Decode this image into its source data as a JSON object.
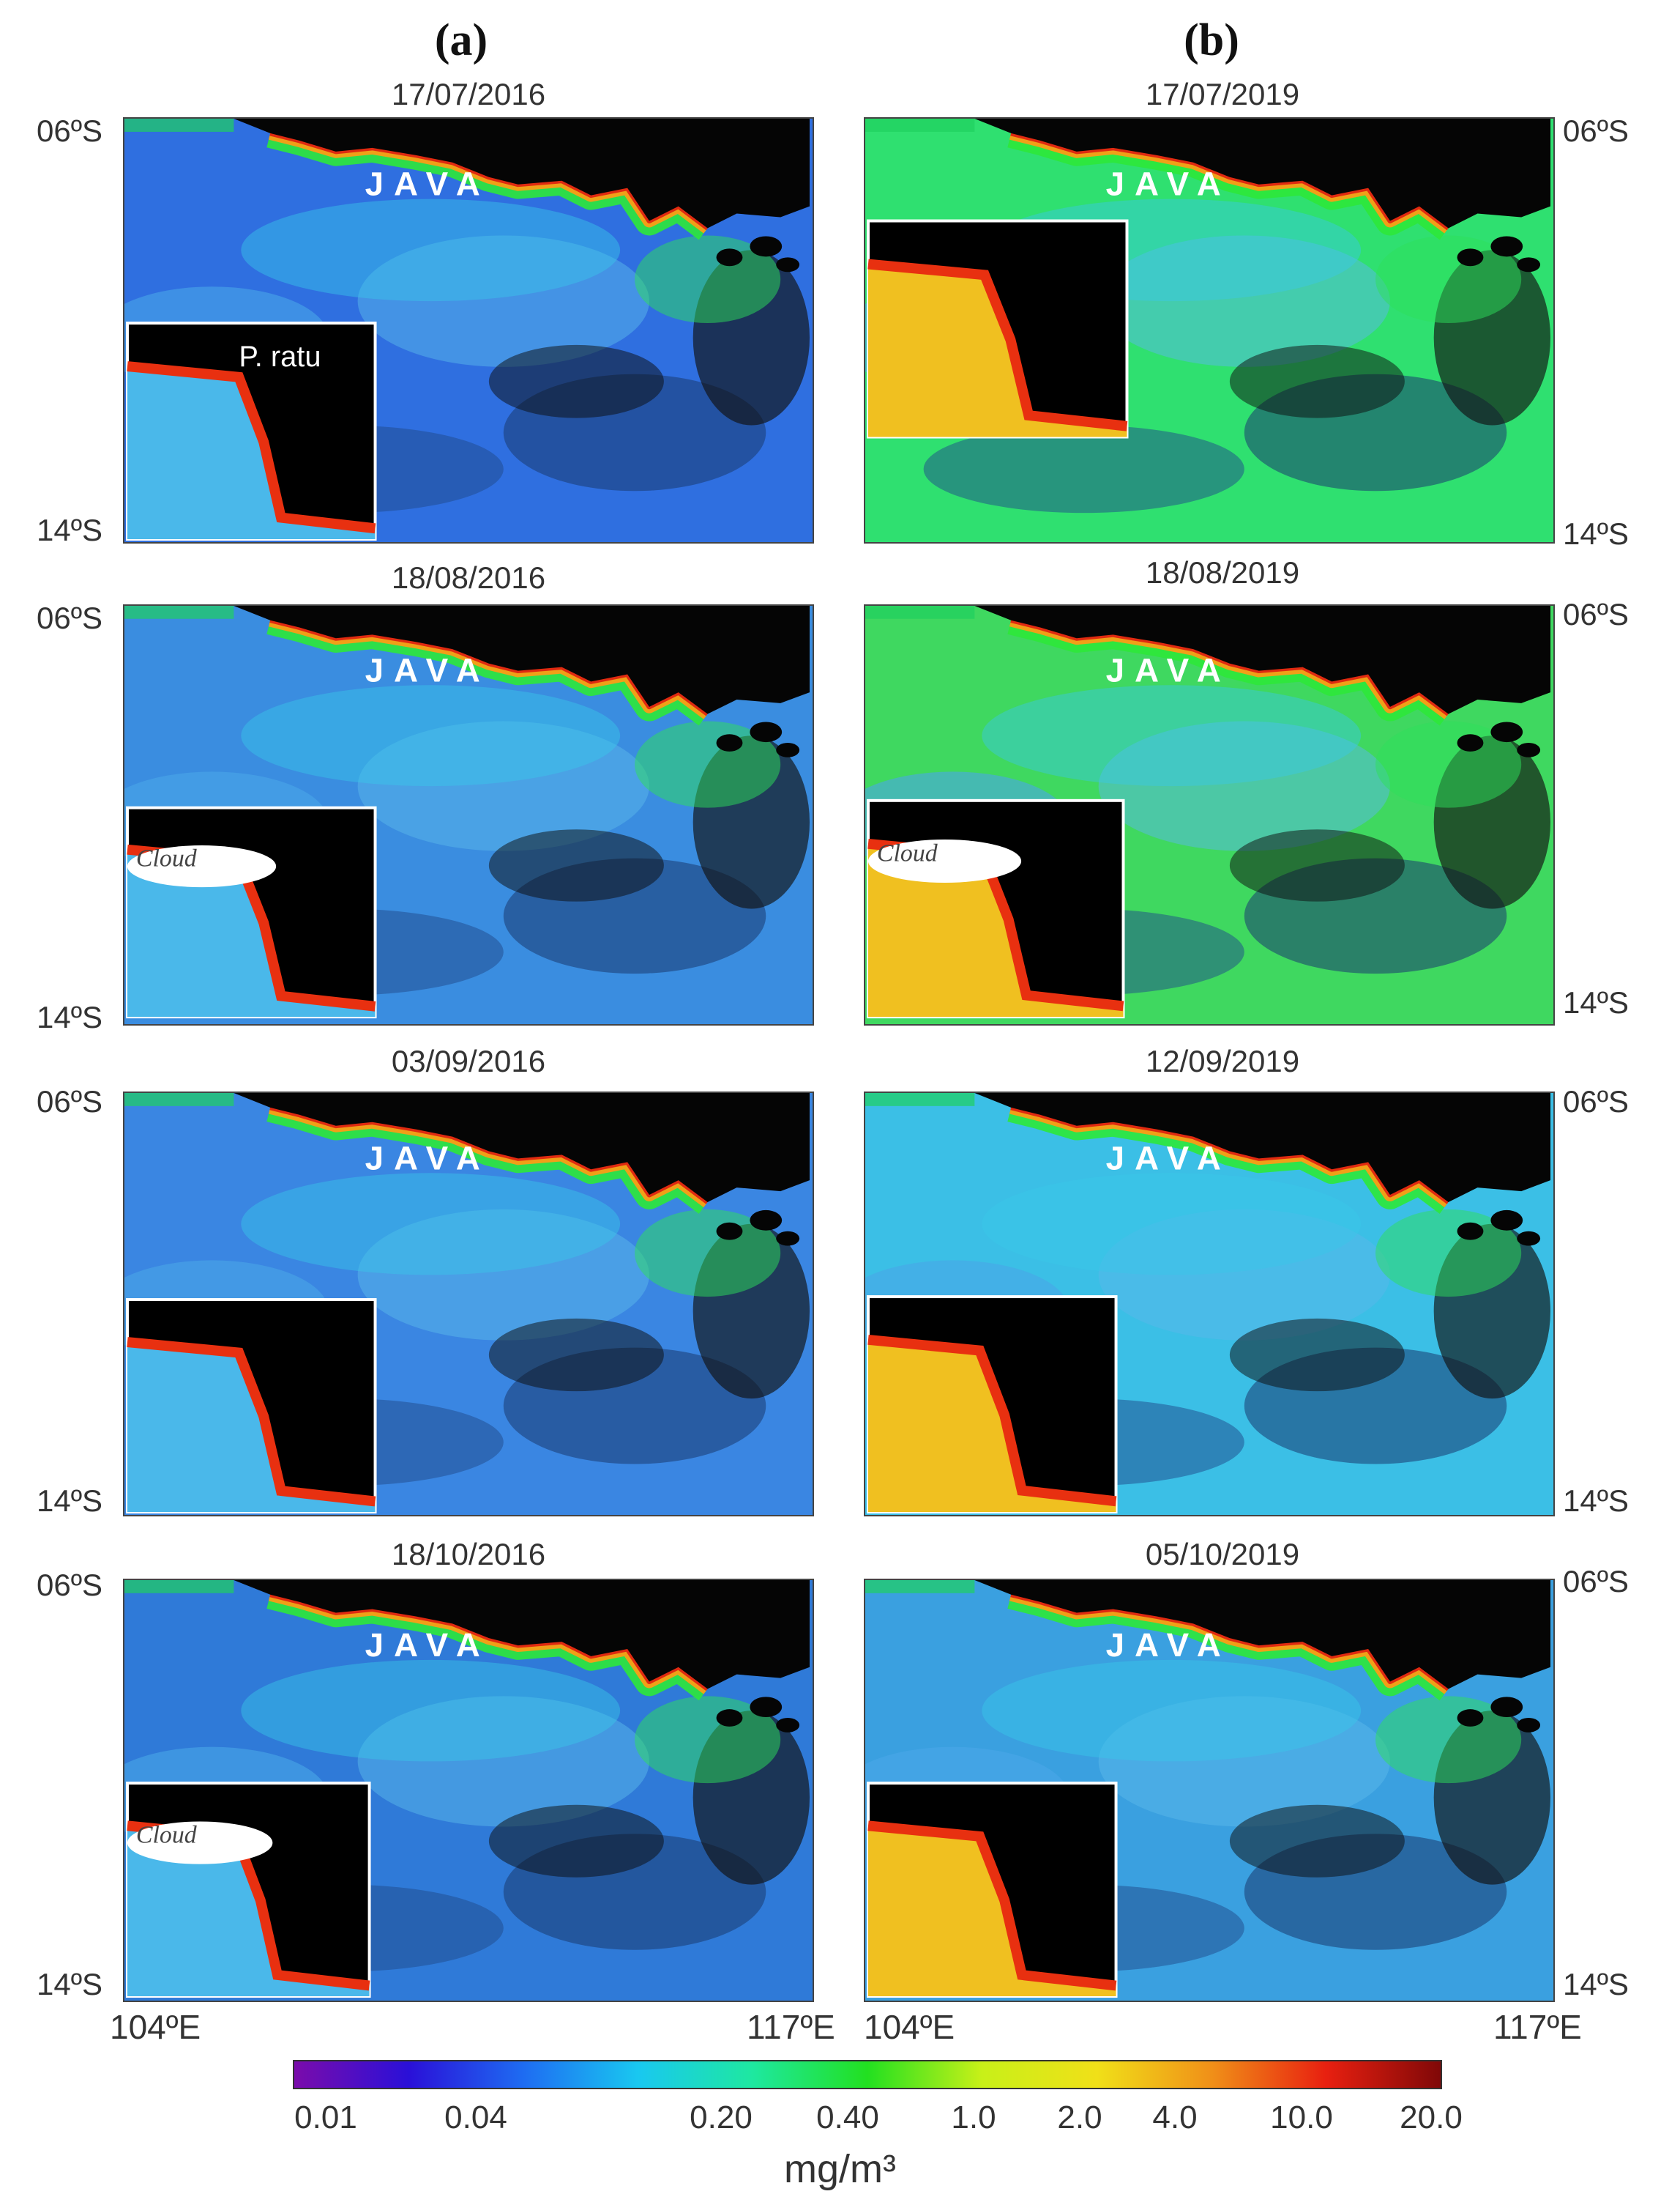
{
  "columns": [
    {
      "label": "(a)"
    },
    {
      "label": "(b)"
    }
  ],
  "region_label": "JAVA",
  "panels": [
    {
      "date": "17/07/2016",
      "inset_text": "P. ratu",
      "base": "#2f6fe0"
    },
    {
      "date": "17/07/2019",
      "inset_text": "",
      "base": "#2fe070"
    },
    {
      "date": "18/08/2016",
      "inset_text": "Cloud",
      "base": "#3a8de0"
    },
    {
      "date": "18/08/2019",
      "inset_text": "Cloud",
      "base": "#3fd860"
    },
    {
      "date": "03/09/2016",
      "inset_text": "",
      "base": "#3a86e2"
    },
    {
      "date": "12/09/2019",
      "inset_text": "",
      "base": "#3bbfe6"
    },
    {
      "date": "18/10/2016",
      "inset_text": "Cloud",
      "base": "#2f7ad8"
    },
    {
      "date": "05/10/2019",
      "inset_text": "",
      "base": "#3aa0e0"
    }
  ],
  "lat_labels": {
    "north": "06ºS",
    "south": "14ºS"
  },
  "lon_labels": {
    "west": "104ºE",
    "east": "117ºE"
  },
  "colorbar": {
    "ticks": [
      "0.01",
      "0.04",
      "0.20",
      "0.40",
      "1.0",
      "2.0",
      "4.0",
      "10.0",
      "20.0"
    ],
    "unit": "mg/m³",
    "colors": [
      "#7a0cab",
      "#2a10d8",
      "#1e6cf2",
      "#19c8f0",
      "#1ee8a0",
      "#22e020",
      "#c8f018",
      "#f0e018",
      "#f09018",
      "#e82010",
      "#800808"
    ]
  }
}
